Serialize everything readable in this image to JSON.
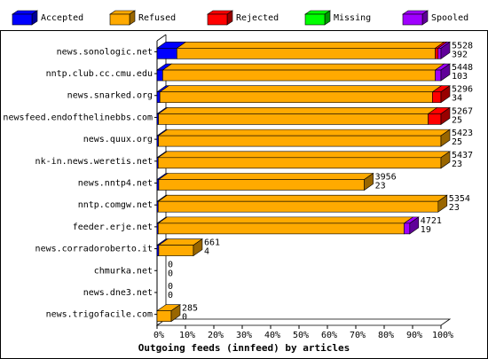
{
  "chart_data": {
    "type": "bar3d_stacked_horizontal",
    "xlabel": "Outgoing feeds (innfeed) by articles",
    "categories": [
      "news.sonologic.net",
      "nntp.club.cc.cmu.edu",
      "news.snarked.org",
      "newsfeed.endofthelinebbs.com",
      "news.quux.org",
      "nk-in.news.weretis.net",
      "news.nntp4.net",
      "nntp.comgw.net",
      "feeder.erje.net",
      "news.corradoroberto.it",
      "chmurka.net",
      "news.dne3.net",
      "news.trigofacile.com"
    ],
    "series": [
      {
        "name": "Accepted",
        "color": "#0000ff",
        "values": [
          7,
          2,
          1,
          0.5,
          0.5,
          0.4,
          0.6,
          0.4,
          0.4,
          0.6,
          0,
          0,
          0
        ]
      },
      {
        "name": "Refused",
        "color": "#ffaa00",
        "values": [
          91,
          96,
          96,
          95,
          99.5,
          99.6,
          72.4,
          98.6,
          86.6,
          12.2,
          0,
          0,
          5
        ]
      },
      {
        "name": "Rejected",
        "color": "#ff0000",
        "values": [
          1,
          0,
          3,
          4.5,
          0,
          0,
          0,
          0,
          0,
          0,
          0,
          0,
          0
        ]
      },
      {
        "name": "Missing",
        "color": "#00ff00",
        "values": [
          0,
          0,
          0,
          0,
          0,
          0,
          0,
          0,
          0,
          0,
          0,
          0,
          0
        ]
      },
      {
        "name": "Spooled",
        "color": "#a000ff",
        "values": [
          1,
          2,
          0,
          0,
          0,
          0,
          0,
          0,
          2,
          0,
          0,
          0,
          0
        ]
      }
    ],
    "offered": [
      5528,
      5448,
      5296,
      5267,
      5423,
      5437,
      3956,
      5354,
      4721,
      661,
      0,
      0,
      285
    ],
    "accepted": [
      392,
      103,
      34,
      25,
      25,
      23,
      23,
      23,
      19,
      4,
      0,
      0,
      0
    ],
    "xlim": [
      0,
      100
    ],
    "xticks": [
      {
        "value": 0,
        "label": "0%"
      },
      {
        "value": 10,
        "label": "10%"
      },
      {
        "value": 20,
        "label": "20%"
      },
      {
        "value": 30,
        "label": "30%"
      },
      {
        "value": 40,
        "label": "40%"
      },
      {
        "value": 50,
        "label": "50%"
      },
      {
        "value": 60,
        "label": "60%"
      },
      {
        "value": 70,
        "label": "70%"
      },
      {
        "value": 80,
        "label": "80%"
      },
      {
        "value": 90,
        "label": "90%"
      },
      {
        "value": 100,
        "label": "100%"
      }
    ]
  }
}
